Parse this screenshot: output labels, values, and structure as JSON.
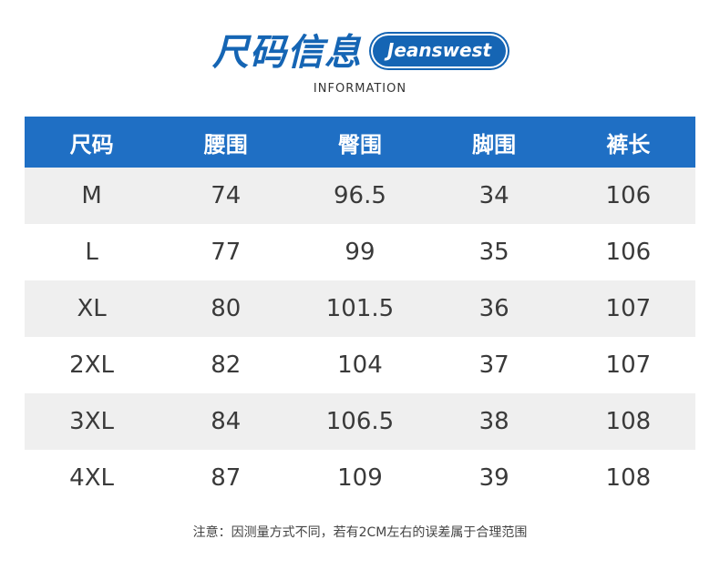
{
  "header": {
    "title": "尺码信息",
    "brand": "Jeanswest",
    "subtitle": "INFORMATION"
  },
  "table": {
    "columns": [
      "尺码",
      "腰围",
      "臀围",
      "脚围",
      "裤长"
    ],
    "rows": [
      [
        "M",
        "74",
        "96.5",
        "34",
        "106"
      ],
      [
        "L",
        "77",
        "99",
        "35",
        "106"
      ],
      [
        "XL",
        "80",
        "101.5",
        "36",
        "107"
      ],
      [
        "2XL",
        "82",
        "104",
        "37",
        "107"
      ],
      [
        "3XL",
        "84",
        "106.5",
        "38",
        "108"
      ],
      [
        "4XL",
        "87",
        "109",
        "39",
        "108"
      ]
    ]
  },
  "note": "注意：因测量方式不同，若有2CM左右的误差属于合理范围",
  "colors": {
    "brand_blue": "#1565b4",
    "header_row": "#1f6fc4",
    "stripe": "#efefef"
  }
}
